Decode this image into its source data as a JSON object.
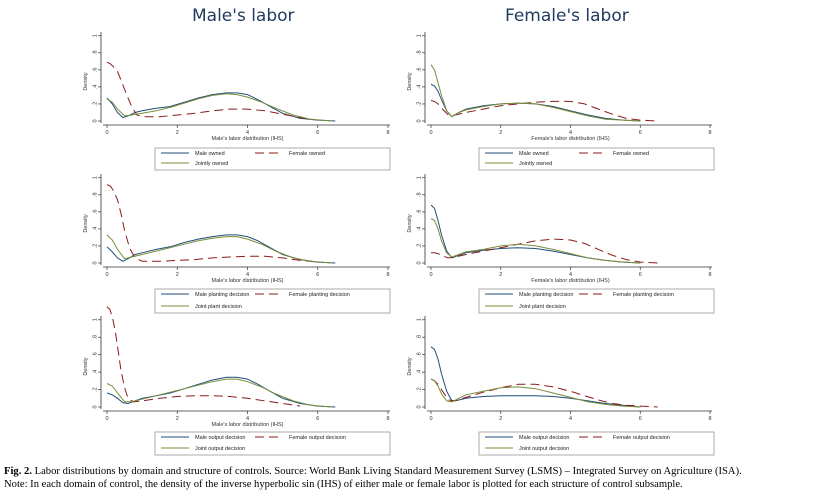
{
  "column_titles": [
    "Male's labor",
    "Female's labor"
  ],
  "caption": {
    "label": "Fig. 2.",
    "line1": "Labor distributions by domain and structure of controls. Source: World Bank Living Standard Measurement Survey (LSMS) – Integrated Survey on Agriculture (ISA).",
    "line2": "Note: In each domain of control, the density of the inverse hyperbolic sin (IHS) of either male or female labor is plotted for each structure of control subsample."
  },
  "colors": {
    "male": "#1f4e79",
    "female": "#8b1a1a",
    "joint": "#7a8c3a"
  },
  "chart_data": [
    {
      "type": "line",
      "xlabel": "Male's labor distribution (IHS)",
      "ylabel": "Density",
      "xlim": [
        0,
        8
      ],
      "ylim": [
        0,
        1
      ],
      "xticks": [
        "0",
        "2",
        "4",
        "6",
        "8"
      ],
      "yticks": [
        "0",
        ".2",
        ".4",
        ".6",
        ".8",
        "1"
      ],
      "legend": [
        "Male owned",
        "Female owned",
        "Jointly owned"
      ],
      "series": [
        {
          "name": "Male owned",
          "x": [
            0,
            0.15,
            0.3,
            0.45,
            0.6,
            0.8,
            1.0,
            1.4,
            1.8,
            2.2,
            2.6,
            3.0,
            3.4,
            3.7,
            4.0,
            4.3,
            4.6,
            5.0,
            5.5,
            6.0,
            6.5
          ],
          "y": [
            0.27,
            0.2,
            0.1,
            0.04,
            0.06,
            0.1,
            0.12,
            0.15,
            0.17,
            0.22,
            0.27,
            0.31,
            0.33,
            0.33,
            0.31,
            0.25,
            0.18,
            0.09,
            0.03,
            0.01,
            0.0
          ]
        },
        {
          "name": "Female owned",
          "x": [
            0,
            0.1,
            0.2,
            0.3,
            0.4,
            0.55,
            0.7,
            0.85,
            1.0,
            1.5,
            2.0,
            2.5,
            3.0,
            3.5,
            4.0,
            4.5,
            5.0,
            5.5,
            6.0
          ],
          "y": [
            0.69,
            0.67,
            0.63,
            0.58,
            0.48,
            0.32,
            0.17,
            0.07,
            0.05,
            0.05,
            0.07,
            0.09,
            0.12,
            0.14,
            0.14,
            0.12,
            0.08,
            0.04,
            0.01
          ]
        },
        {
          "name": "Jointly owned",
          "x": [
            0,
            0.15,
            0.3,
            0.5,
            0.7,
            1.0,
            1.4,
            1.8,
            2.2,
            2.6,
            3.0,
            3.4,
            3.7,
            4.0,
            4.4,
            4.8,
            5.3,
            5.8,
            6.4
          ],
          "y": [
            0.26,
            0.22,
            0.14,
            0.06,
            0.07,
            0.09,
            0.12,
            0.16,
            0.21,
            0.26,
            0.3,
            0.32,
            0.31,
            0.28,
            0.22,
            0.15,
            0.07,
            0.02,
            0.0
          ]
        }
      ]
    },
    {
      "type": "line",
      "xlabel": "Female's labor distribution (IHS)",
      "ylabel": "Density",
      "xlim": [
        0,
        8
      ],
      "ylim": [
        0,
        1
      ],
      "xticks": [
        "0",
        "2",
        "4",
        "6",
        "8"
      ],
      "yticks": [
        "0",
        ".2",
        ".4",
        ".6",
        ".8",
        "1"
      ],
      "legend": [
        "Male owned",
        "Female owned",
        "Jointly owned"
      ],
      "series": [
        {
          "name": "Male owned",
          "x": [
            0,
            0.1,
            0.2,
            0.3,
            0.45,
            0.6,
            0.8,
            1.0,
            1.5,
            2.0,
            2.5,
            3.0,
            3.5,
            4.0,
            4.5,
            5.0,
            5.5,
            6.0
          ],
          "y": [
            0.43,
            0.41,
            0.35,
            0.25,
            0.12,
            0.05,
            0.1,
            0.14,
            0.18,
            0.2,
            0.21,
            0.2,
            0.17,
            0.12,
            0.07,
            0.03,
            0.01,
            0.0
          ]
        },
        {
          "name": "Female owned",
          "x": [
            0,
            0.1,
            0.2,
            0.35,
            0.5,
            0.7,
            1.0,
            1.5,
            2.0,
            2.5,
            3.0,
            3.5,
            4.0,
            4.4,
            4.8,
            5.2,
            5.6,
            6.0,
            6.5
          ],
          "y": [
            0.24,
            0.23,
            0.2,
            0.13,
            0.07,
            0.07,
            0.1,
            0.14,
            0.18,
            0.2,
            0.22,
            0.23,
            0.23,
            0.2,
            0.14,
            0.08,
            0.03,
            0.01,
            0.0
          ]
        },
        {
          "name": "Jointly owned",
          "x": [
            0,
            0.1,
            0.2,
            0.3,
            0.45,
            0.6,
            0.8,
            1.0,
            1.5,
            2.0,
            2.5,
            3.0,
            3.5,
            4.0,
            4.5,
            5.0,
            5.5,
            6.0
          ],
          "y": [
            0.66,
            0.6,
            0.45,
            0.3,
            0.12,
            0.05,
            0.1,
            0.13,
            0.17,
            0.2,
            0.21,
            0.2,
            0.16,
            0.11,
            0.06,
            0.02,
            0.01,
            0.0
          ]
        }
      ]
    },
    {
      "type": "line",
      "xlabel": "Male's labor distribution (IHS)",
      "ylabel": "Density",
      "xlim": [
        0,
        8
      ],
      "ylim": [
        0,
        1
      ],
      "xticks": [
        "0",
        "2",
        "4",
        "6",
        "8"
      ],
      "yticks": [
        "0",
        ".2",
        ".4",
        ".6",
        ".8",
        "1"
      ],
      "legend": [
        "Male planting decision",
        "Female planting decision",
        "Joint plant decision"
      ],
      "series": [
        {
          "name": "Male planting decision",
          "x": [
            0,
            0.15,
            0.3,
            0.45,
            0.6,
            0.8,
            1.0,
            1.4,
            1.8,
            2.2,
            2.6,
            3.0,
            3.4,
            3.7,
            4.0,
            4.3,
            4.6,
            5.0,
            5.5,
            6.0,
            6.5
          ],
          "y": [
            0.19,
            0.13,
            0.06,
            0.02,
            0.05,
            0.1,
            0.12,
            0.16,
            0.19,
            0.24,
            0.28,
            0.31,
            0.33,
            0.33,
            0.31,
            0.26,
            0.19,
            0.1,
            0.04,
            0.01,
            0.0
          ]
        },
        {
          "name": "Female planting decision",
          "x": [
            0,
            0.1,
            0.2,
            0.3,
            0.4,
            0.5,
            0.65,
            0.8,
            1.0,
            1.5,
            2.0,
            2.5,
            3.0,
            3.5,
            4.0,
            4.5,
            5.0,
            5.5,
            6.0
          ],
          "y": [
            0.92,
            0.9,
            0.84,
            0.74,
            0.58,
            0.38,
            0.17,
            0.06,
            0.02,
            0.02,
            0.03,
            0.04,
            0.06,
            0.07,
            0.08,
            0.08,
            0.06,
            0.03,
            0.01
          ]
        },
        {
          "name": "Joint plant decision",
          "x": [
            0,
            0.15,
            0.3,
            0.5,
            0.7,
            1.0,
            1.4,
            1.8,
            2.2,
            2.6,
            3.0,
            3.4,
            3.7,
            4.0,
            4.4,
            4.8,
            5.3,
            5.8,
            6.4
          ],
          "y": [
            0.33,
            0.27,
            0.16,
            0.05,
            0.07,
            0.1,
            0.14,
            0.18,
            0.22,
            0.26,
            0.29,
            0.31,
            0.31,
            0.28,
            0.22,
            0.14,
            0.06,
            0.02,
            0.0
          ]
        }
      ]
    },
    {
      "type": "line",
      "xlabel": "Female's labor distribution (IHS)",
      "ylabel": "Density",
      "xlim": [
        0,
        8
      ],
      "ylim": [
        0,
        1
      ],
      "xticks": [
        "0",
        "2",
        "4",
        "6",
        "8"
      ],
      "yticks": [
        "0",
        ".2",
        ".4",
        ".6",
        ".8",
        "1"
      ],
      "legend": [
        "Male planting decision",
        "Female planting decision",
        "Joint plant decision"
      ],
      "series": [
        {
          "name": "Male planting decision",
          "x": [
            0,
            0.1,
            0.2,
            0.3,
            0.45,
            0.6,
            0.8,
            1.0,
            1.5,
            2.0,
            2.5,
            3.0,
            3.5,
            4.0,
            4.5,
            5.0,
            5.5,
            6.0
          ],
          "y": [
            0.68,
            0.64,
            0.5,
            0.33,
            0.14,
            0.06,
            0.09,
            0.12,
            0.15,
            0.17,
            0.18,
            0.17,
            0.14,
            0.1,
            0.06,
            0.03,
            0.01,
            0.0
          ]
        },
        {
          "name": "Female planting decision",
          "x": [
            0,
            0.1,
            0.2,
            0.35,
            0.5,
            0.7,
            1.0,
            1.5,
            2.0,
            2.5,
            3.0,
            3.5,
            4.0,
            4.4,
            4.8,
            5.2,
            5.6,
            6.0,
            6.5
          ],
          "y": [
            0.12,
            0.12,
            0.11,
            0.08,
            0.06,
            0.07,
            0.1,
            0.14,
            0.18,
            0.22,
            0.26,
            0.28,
            0.27,
            0.23,
            0.16,
            0.09,
            0.04,
            0.01,
            0.0
          ]
        },
        {
          "name": "Joint plant decision",
          "x": [
            0,
            0.1,
            0.2,
            0.3,
            0.45,
            0.6,
            0.8,
            1.0,
            1.5,
            2.0,
            2.5,
            3.0,
            3.5,
            4.0,
            4.5,
            5.0,
            5.5,
            6.0
          ],
          "y": [
            0.52,
            0.5,
            0.4,
            0.26,
            0.12,
            0.07,
            0.1,
            0.13,
            0.16,
            0.2,
            0.22,
            0.2,
            0.16,
            0.11,
            0.06,
            0.03,
            0.01,
            0.0
          ]
        }
      ]
    },
    {
      "type": "line",
      "xlabel": "Male's labor distribution (IHS)",
      "ylabel": "Density",
      "xlim": [
        0,
        8
      ],
      "ylim": [
        0,
        1.2
      ],
      "xticks": [
        "0",
        "2",
        "4",
        "6",
        "8"
      ],
      "yticks": [
        "0",
        ".2",
        ".4",
        ".6",
        ".8",
        "1"
      ],
      "legend": [
        "Male output decision",
        "Female output decision",
        "Joint output decision"
      ],
      "series": [
        {
          "name": "Male output decision",
          "x": [
            0,
            0.15,
            0.3,
            0.45,
            0.6,
            0.8,
            1.0,
            1.4,
            1.8,
            2.2,
            2.6,
            3.0,
            3.4,
            3.7,
            4.0,
            4.3,
            4.6,
            5.0,
            5.5,
            6.0,
            6.5
          ],
          "y": [
            0.16,
            0.14,
            0.1,
            0.05,
            0.04,
            0.07,
            0.1,
            0.13,
            0.16,
            0.21,
            0.26,
            0.31,
            0.34,
            0.34,
            0.32,
            0.26,
            0.19,
            0.1,
            0.04,
            0.01,
            0.0
          ]
        },
        {
          "name": "Female output decision",
          "x": [
            0,
            0.08,
            0.16,
            0.24,
            0.32,
            0.4,
            0.5,
            0.6,
            0.75,
            1.0,
            1.5,
            2.0,
            2.5,
            3.0,
            3.5,
            4.0,
            4.5,
            5.0,
            5.5
          ],
          "y": [
            1.15,
            1.12,
            1.02,
            0.86,
            0.64,
            0.42,
            0.22,
            0.1,
            0.06,
            0.07,
            0.1,
            0.12,
            0.13,
            0.13,
            0.12,
            0.1,
            0.07,
            0.04,
            0.01
          ]
        },
        {
          "name": "Joint output decision",
          "x": [
            0,
            0.15,
            0.3,
            0.5,
            0.7,
            1.0,
            1.4,
            1.8,
            2.2,
            2.6,
            3.0,
            3.4,
            3.7,
            4.0,
            4.4,
            4.8,
            5.3,
            5.8,
            6.4
          ],
          "y": [
            0.27,
            0.24,
            0.16,
            0.06,
            0.06,
            0.09,
            0.13,
            0.17,
            0.21,
            0.25,
            0.29,
            0.32,
            0.32,
            0.29,
            0.23,
            0.15,
            0.07,
            0.02,
            0.0
          ]
        }
      ]
    },
    {
      "type": "line",
      "xlabel": "",
      "ylabel": "Density",
      "xlim": [
        0,
        8
      ],
      "ylim": [
        0,
        1
      ],
      "xticks": [
        "0",
        "2",
        "4",
        "6",
        "8"
      ],
      "yticks": [
        "0",
        ".2",
        ".4",
        ".6",
        ".8",
        "1"
      ],
      "legend": [
        "Male output decision",
        "Female output decision",
        "Joint output decision"
      ],
      "series": [
        {
          "name": "Male output decision",
          "x": [
            0,
            0.1,
            0.2,
            0.3,
            0.45,
            0.6,
            0.8,
            1.0,
            1.5,
            2.0,
            2.5,
            3.0,
            3.5,
            4.0,
            4.5,
            5.0,
            5.5,
            6.0
          ],
          "y": [
            0.69,
            0.66,
            0.55,
            0.38,
            0.18,
            0.07,
            0.08,
            0.1,
            0.12,
            0.13,
            0.13,
            0.13,
            0.12,
            0.1,
            0.07,
            0.04,
            0.02,
            0.0
          ]
        },
        {
          "name": "Female output decision",
          "x": [
            0,
            0.1,
            0.2,
            0.35,
            0.5,
            0.7,
            1.0,
            1.5,
            2.0,
            2.5,
            3.0,
            3.5,
            4.0,
            4.4,
            4.8,
            5.2,
            5.6,
            6.0,
            6.5
          ],
          "y": [
            0.32,
            0.3,
            0.26,
            0.17,
            0.08,
            0.07,
            0.11,
            0.17,
            0.22,
            0.26,
            0.26,
            0.23,
            0.18,
            0.13,
            0.08,
            0.04,
            0.02,
            0.01,
            0.0
          ]
        },
        {
          "name": "Joint output decision",
          "x": [
            0,
            0.1,
            0.2,
            0.3,
            0.45,
            0.6,
            0.8,
            1.0,
            1.5,
            2.0,
            2.5,
            3.0,
            3.5,
            4.0,
            4.5,
            5.0,
            5.5,
            6.0
          ],
          "y": [
            0.32,
            0.3,
            0.24,
            0.15,
            0.07,
            0.06,
            0.1,
            0.14,
            0.18,
            0.22,
            0.23,
            0.21,
            0.16,
            0.11,
            0.06,
            0.03,
            0.01,
            0.0
          ]
        }
      ]
    }
  ]
}
